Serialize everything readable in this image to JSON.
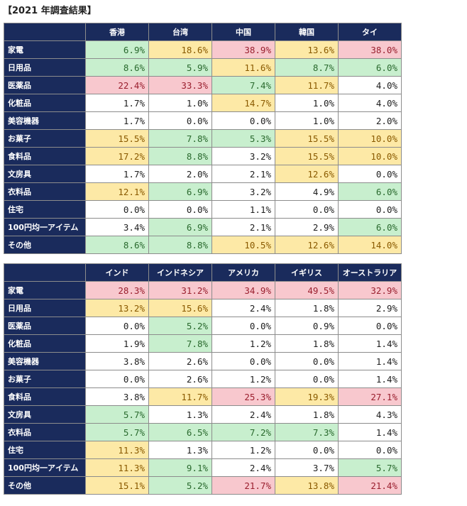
{
  "title": "【2021 年調査結果】",
  "tables": [
    {
      "columns": [
        "香港",
        "台湾",
        "中国",
        "韓国",
        "タイ"
      ],
      "rows": [
        {
          "label": "家電",
          "values": [
            "6.9%",
            "18.6%",
            "38.9%",
            "13.6%",
            "38.0%"
          ],
          "colors": [
            "g",
            "y",
            "p",
            "y",
            "p"
          ]
        },
        {
          "label": "日用品",
          "values": [
            "8.6%",
            "5.9%",
            "11.6%",
            "8.7%",
            "6.0%"
          ],
          "colors": [
            "g",
            "g",
            "y",
            "g",
            "g"
          ]
        },
        {
          "label": "医薬品",
          "values": [
            "22.4%",
            "33.3%",
            "7.4%",
            "11.7%",
            "4.0%"
          ],
          "colors": [
            "p",
            "p",
            "g",
            "y",
            "w"
          ]
        },
        {
          "label": "化粧品",
          "values": [
            "1.7%",
            "1.0%",
            "14.7%",
            "1.0%",
            "4.0%"
          ],
          "colors": [
            "w",
            "w",
            "y",
            "w",
            "w"
          ]
        },
        {
          "label": "美容機器",
          "values": [
            "1.7%",
            "0.0%",
            "0.0%",
            "1.0%",
            "2.0%"
          ],
          "colors": [
            "w",
            "w",
            "w",
            "w",
            "w"
          ]
        },
        {
          "label": "お菓子",
          "values": [
            "15.5%",
            "7.8%",
            "5.3%",
            "15.5%",
            "10.0%"
          ],
          "colors": [
            "y",
            "g",
            "g",
            "y",
            "y"
          ]
        },
        {
          "label": "食料品",
          "values": [
            "17.2%",
            "8.8%",
            "3.2%",
            "15.5%",
            "10.0%"
          ],
          "colors": [
            "y",
            "g",
            "w",
            "y",
            "y"
          ]
        },
        {
          "label": "文房具",
          "values": [
            "1.7%",
            "2.0%",
            "2.1%",
            "12.6%",
            "0.0%"
          ],
          "colors": [
            "w",
            "w",
            "w",
            "y",
            "w"
          ]
        },
        {
          "label": "衣料品",
          "values": [
            "12.1%",
            "6.9%",
            "3.2%",
            "4.9%",
            "6.0%"
          ],
          "colors": [
            "y",
            "g",
            "w",
            "w",
            "g"
          ]
        },
        {
          "label": "住宅",
          "values": [
            "0.0%",
            "0.0%",
            "1.1%",
            "0.0%",
            "0.0%"
          ],
          "colors": [
            "w",
            "w",
            "w",
            "w",
            "w"
          ]
        },
        {
          "label": "100円均一アイテム",
          "values": [
            "3.4%",
            "6.9%",
            "2.1%",
            "2.9%",
            "6.0%"
          ],
          "colors": [
            "w",
            "g",
            "w",
            "w",
            "g"
          ]
        },
        {
          "label": "その他",
          "values": [
            "8.6%",
            "8.8%",
            "10.5%",
            "12.6%",
            "14.0%"
          ],
          "colors": [
            "g",
            "g",
            "y",
            "y",
            "y"
          ]
        }
      ]
    },
    {
      "columns": [
        "インド",
        "インドネシア",
        "アメリカ",
        "イギリス",
        "オーストラリア"
      ],
      "rows": [
        {
          "label": "家電",
          "values": [
            "28.3%",
            "31.2%",
            "34.9%",
            "49.5%",
            "32.9%"
          ],
          "colors": [
            "p",
            "p",
            "p",
            "p",
            "p"
          ]
        },
        {
          "label": "日用品",
          "values": [
            "13.2%",
            "15.6%",
            "2.4%",
            "1.8%",
            "2.9%"
          ],
          "colors": [
            "y",
            "y",
            "w",
            "w",
            "w"
          ]
        },
        {
          "label": "医薬品",
          "values": [
            "0.0%",
            "5.2%",
            "0.0%",
            "0.9%",
            "0.0%"
          ],
          "colors": [
            "w",
            "g",
            "w",
            "w",
            "w"
          ]
        },
        {
          "label": "化粧品",
          "values": [
            "1.9%",
            "7.8%",
            "1.2%",
            "1.8%",
            "1.4%"
          ],
          "colors": [
            "w",
            "g",
            "w",
            "w",
            "w"
          ]
        },
        {
          "label": "美容機器",
          "values": [
            "3.8%",
            "2.6%",
            "0.0%",
            "0.0%",
            "1.4%"
          ],
          "colors": [
            "w",
            "w",
            "w",
            "w",
            "w"
          ]
        },
        {
          "label": "お菓子",
          "values": [
            "0.0%",
            "2.6%",
            "1.2%",
            "0.0%",
            "1.4%"
          ],
          "colors": [
            "w",
            "w",
            "w",
            "w",
            "w"
          ]
        },
        {
          "label": "食料品",
          "values": [
            "3.8%",
            "11.7%",
            "25.3%",
            "19.3%",
            "27.1%"
          ],
          "colors": [
            "w",
            "y",
            "p",
            "y",
            "p"
          ]
        },
        {
          "label": "文房具",
          "values": [
            "5.7%",
            "1.3%",
            "2.4%",
            "1.8%",
            "4.3%"
          ],
          "colors": [
            "g",
            "w",
            "w",
            "w",
            "w"
          ]
        },
        {
          "label": "衣料品",
          "values": [
            "5.7%",
            "6.5%",
            "7.2%",
            "7.3%",
            "1.4%"
          ],
          "colors": [
            "g",
            "g",
            "g",
            "g",
            "w"
          ]
        },
        {
          "label": "住宅",
          "values": [
            "11.3%",
            "1.3%",
            "1.2%",
            "0.0%",
            "0.0%"
          ],
          "colors": [
            "y",
            "w",
            "w",
            "w",
            "w"
          ]
        },
        {
          "label": "100円均一アイテム",
          "values": [
            "11.3%",
            "9.1%",
            "2.4%",
            "3.7%",
            "5.7%"
          ],
          "colors": [
            "y",
            "g",
            "w",
            "w",
            "g"
          ]
        },
        {
          "label": "その他",
          "values": [
            "15.1%",
            "5.2%",
            "21.7%",
            "13.8%",
            "21.4%"
          ],
          "colors": [
            "y",
            "g",
            "p",
            "y",
            "p"
          ]
        }
      ]
    }
  ],
  "palette": {
    "header_bg": "#1a2b5c",
    "g": "#c8efce",
    "y": "#fde9a6",
    "p": "#f8c8ce",
    "w": "#ffffff"
  }
}
